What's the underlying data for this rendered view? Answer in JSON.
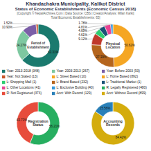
{
  "title": "Khandachakra Municipality, Kalikot District",
  "title2": "Status of Economic Establishments (Economic Census 2018)",
  "subtitle": "[Copyright © NepalArchives.Com | Data Source: CBS | Creator/Analysis: Milan Karki]",
  "subtitle2": "Total Economic Establishments: 65]",
  "legend_items": [
    {
      "name": "Year: 2013-2018 (348)",
      "color": "#1a7a6e"
    },
    {
      "name": "Year: 2003-2013 (267)",
      "color": "#7dc8a0"
    },
    {
      "name": "Year: Before 2003 (93)",
      "color": "#7b5ea7"
    },
    {
      "name": "Year: Not Stated (13)",
      "color": "#c8562a"
    },
    {
      "name": "L: Street Based (10)",
      "color": "#f5a623"
    },
    {
      "name": "L: Home Based (892)",
      "color": "#f5a623"
    },
    {
      "name": "L: Shopping Mall (1)",
      "color": "#2ecc71"
    },
    {
      "name": "L: Brand Based (232)",
      "color": "#b5651d"
    },
    {
      "name": "L: Traditional Market (1)",
      "color": "#1a5276"
    },
    {
      "name": "L: Other Locations (41)",
      "color": "#e84393"
    },
    {
      "name": "L: Exclusive Building (40)",
      "color": "#3498db"
    },
    {
      "name": "R: Legally Registered (480)",
      "color": "#27ae60"
    },
    {
      "name": "R: Not Registered (373)",
      "color": "#e74c3c"
    },
    {
      "name": "Acct: With Record (129)",
      "color": "#2980b9"
    },
    {
      "name": "Acct: Without Record (899)",
      "color": "#d4ac0d"
    }
  ],
  "chart_data": [
    {
      "type": "pie",
      "title": "Period of\nEstablishment",
      "values": [
        63.31,
        24.27,
        10.9,
        1.52
      ],
      "value_labels": [
        "63.31%",
        "24.27%",
        "10.90%",
        "1.52%"
      ],
      "colors": [
        "#1a7a6e",
        "#7dc8a0",
        "#7b5ea7",
        "#c8562a"
      ],
      "data_labels": true
    },
    {
      "type": "pie",
      "title": "Physical\nLocation",
      "values": [
        50.62,
        27.39,
        9.12,
        4.61,
        4.69,
        4.81,
        1.78
      ],
      "value_labels": [
        "50.62%",
        "27.39%",
        "9.12%",
        "4.61%",
        "4.69%",
        "4.81%",
        "1.78%"
      ],
      "colors": [
        "#f5a623",
        "#b5651d",
        "#c0392b",
        "#2ecc71",
        "#1a5276",
        "#e84393",
        "#3498db"
      ],
      "data_labels": true
    },
    {
      "type": "pie",
      "title": "Registration\nStatus",
      "values": [
        56.21,
        43.73
      ],
      "value_labels": [
        "56.21%",
        "43.73%"
      ],
      "colors": [
        "#27ae60",
        "#e74c3c"
      ],
      "data_labels": true
    },
    {
      "type": "pie",
      "title": "Accounting\nRecords",
      "values": [
        84.42,
        15.56
      ],
      "value_labels": [
        "84.42%",
        "15.56%"
      ],
      "colors": [
        "#d4ac0d",
        "#2980b9"
      ],
      "data_labels": true
    }
  ]
}
